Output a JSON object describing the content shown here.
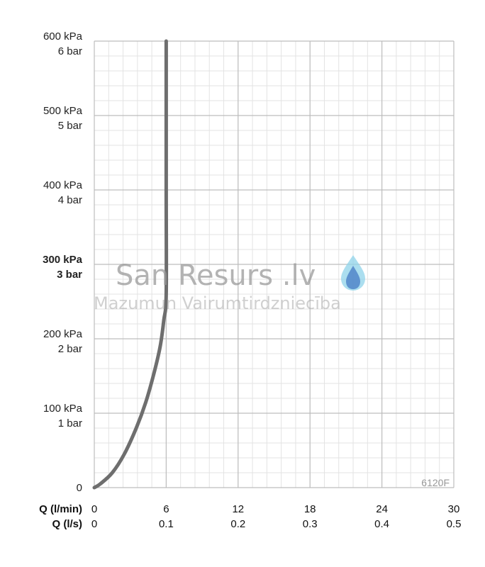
{
  "chart_data": {
    "type": "line",
    "model_label": "6120F",
    "x_axis": {
      "labels": [
        "Q (l/min)",
        "Q (l/s)"
      ],
      "ticks_lmin": [
        "0",
        "6",
        "12",
        "18",
        "24",
        "30"
      ],
      "ticks_ls": [
        "0",
        "0.1",
        "0.2",
        "0.3",
        "0.4",
        "0.5"
      ],
      "range": [
        0,
        30
      ]
    },
    "y_axis": {
      "range": [
        0,
        600
      ],
      "ticks": [
        {
          "value": 600,
          "kpa": "600 kPa",
          "bar": "6 bar",
          "bold": false
        },
        {
          "value": 500,
          "kpa": "500 kPa",
          "bar": "5 bar",
          "bold": false
        },
        {
          "value": 400,
          "kpa": "400 kPa",
          "bar": "4 bar",
          "bold": false
        },
        {
          "value": 300,
          "kpa": "300 kPa",
          "bar": "3 bar",
          "bold": true
        },
        {
          "value": 200,
          "kpa": "200 kPa",
          "bar": "2 bar",
          "bold": false
        },
        {
          "value": 100,
          "kpa": "100 kPa",
          "bar": "1 bar",
          "bold": false
        },
        {
          "value": 0,
          "kpa": "0",
          "bar": "",
          "bold": false
        }
      ]
    },
    "grid": true,
    "series": [
      {
        "color": "#6e6e6e",
        "x": [
          0,
          0.5,
          1.5,
          2.5,
          3.5,
          4.3,
          5.0,
          5.5,
          5.8,
          6.0,
          6.0,
          6.0
        ],
        "y": [
          0,
          5,
          20,
          45,
          80,
          115,
          155,
          190,
          225,
          260,
          400,
          600
        ]
      }
    ]
  },
  "watermark": {
    "title": "San Resurs .lv",
    "subtitle": "Mazumun Vairumtirdzniecība"
  }
}
